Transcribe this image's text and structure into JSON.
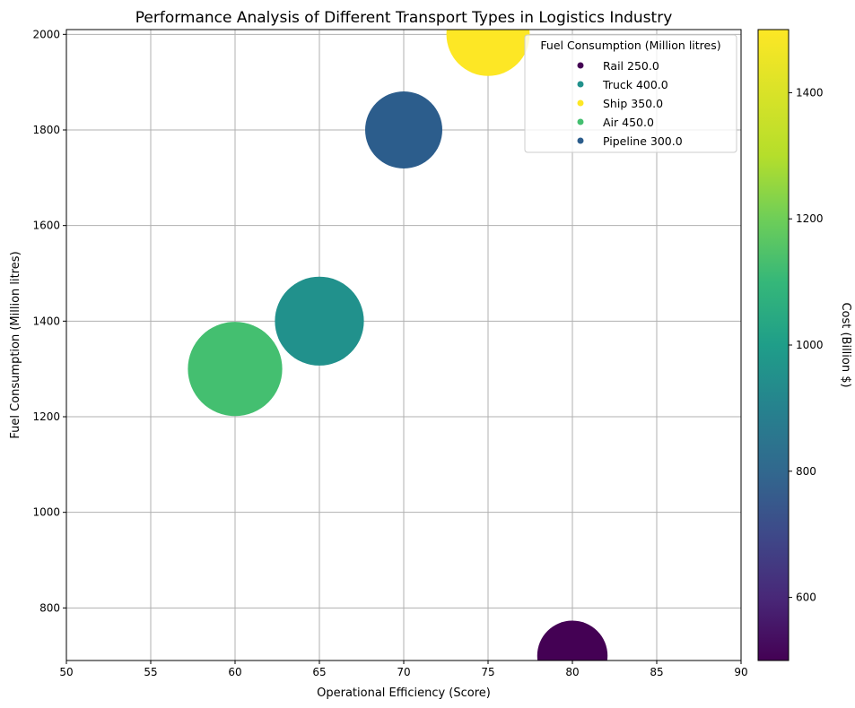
{
  "chart_data": {
    "type": "scatter",
    "title": "Performance Analysis of Different Transport Types in Logistics Industry",
    "xlabel": "Operational Efficiency (Score)",
    "ylabel": "Fuel Consumption (Million litres)",
    "xlim": [
      50,
      90
    ],
    "ylim": [
      690,
      2010
    ],
    "xticks": [
      50,
      55,
      60,
      65,
      70,
      75,
      80,
      85,
      90
    ],
    "yticks": [
      800,
      1000,
      1200,
      1400,
      1600,
      1800,
      2000
    ],
    "grid": true,
    "legend": {
      "title": "Fuel Consumption (Million litres)",
      "placement": "top-right"
    },
    "colorbar": {
      "label": "Cost (Billion $)",
      "range": [
        500,
        1500
      ],
      "ticks": [
        600,
        800,
        1000,
        1200,
        1400
      ],
      "colormap": "viridis"
    },
    "points": [
      {
        "label": "Rail 250.0",
        "x": 80,
        "y": 700,
        "size": 250.0,
        "cost": 500,
        "color": "#440154"
      },
      {
        "label": "Truck 400.0",
        "x": 65,
        "y": 1400,
        "size": 400.0,
        "cost": 1000,
        "color": "#21918c"
      },
      {
        "label": "Ship 350.0",
        "x": 75,
        "y": 2000,
        "size": 350.0,
        "cost": 1500,
        "color": "#fde725"
      },
      {
        "label": "Air 450.0",
        "x": 60,
        "y": 1300,
        "size": 450.0,
        "cost": 1200,
        "color": "#44bf70"
      },
      {
        "label": "Pipeline 300.0",
        "x": 70,
        "y": 1800,
        "size": 300.0,
        "cost": 800,
        "color": "#2c5d8c"
      }
    ]
  }
}
